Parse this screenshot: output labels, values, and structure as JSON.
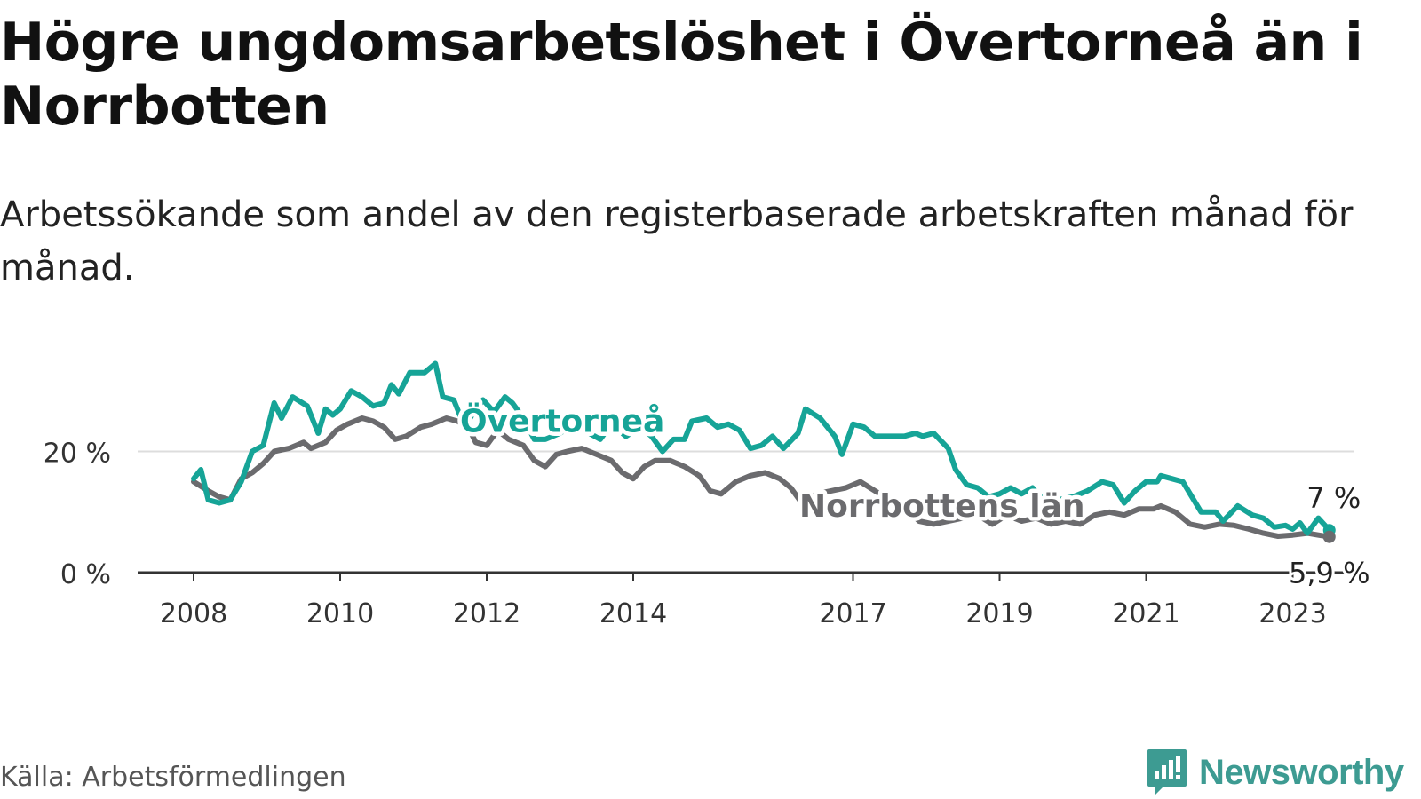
{
  "title": "Högre ungdomsarbetslöshet i Övertorneå än i Norrbotten",
  "subtitle": "Arbetssökande som andel av den registerbaserade arbetskraften månad för månad.",
  "source": "Källa: Arbetsförmedlingen",
  "logo": {
    "text": "Newsworthy",
    "icon": "newsworthy-logo-icon",
    "color": "#3d9b92"
  },
  "colors": {
    "overtornea": "#16a497",
    "norrbotten": "#6b6b6e",
    "grid": "#dddddd",
    "axis": "#333333"
  },
  "chart_data": {
    "type": "line",
    "title": "Högre ungdomsarbetslöshet i Övertorneå än i Norrbotten",
    "subtitle": "Arbetssökande som andel av den registerbaserade arbetskraften månad för månad.",
    "xlabel": "",
    "ylabel": "",
    "x_range": [
      2007.2,
      2024.0
    ],
    "ylim": [
      0,
      40
    ],
    "y_ticks": [
      0,
      20
    ],
    "y_tick_labels": [
      "0 %",
      "20 %"
    ],
    "x_ticks": [
      2008,
      2010,
      2012,
      2014,
      2017,
      2019,
      2021,
      2023
    ],
    "x_tick_labels": [
      "2008",
      "2010",
      "2012",
      "2014",
      "2017",
      "2019",
      "2021",
      "2023"
    ],
    "grid": true,
    "series": [
      {
        "name": "Övertorneå",
        "color": "#16a497",
        "last_label": "7 %",
        "points": [
          [
            2008.0,
            15.5
          ],
          [
            2008.1,
            17.0
          ],
          [
            2008.2,
            12.0
          ],
          [
            2008.35,
            11.5
          ],
          [
            2008.5,
            12.0
          ],
          [
            2008.65,
            15.0
          ],
          [
            2008.8,
            20.0
          ],
          [
            2008.95,
            21.0
          ],
          [
            2009.1,
            28.0
          ],
          [
            2009.2,
            25.5
          ],
          [
            2009.35,
            29.0
          ],
          [
            2009.55,
            27.5
          ],
          [
            2009.7,
            23.0
          ],
          [
            2009.8,
            27.0
          ],
          [
            2009.9,
            26.0
          ],
          [
            2010.0,
            27.0
          ],
          [
            2010.15,
            30.0
          ],
          [
            2010.3,
            29.0
          ],
          [
            2010.45,
            27.5
          ],
          [
            2010.6,
            28.0
          ],
          [
            2010.7,
            31.0
          ],
          [
            2010.8,
            29.5
          ],
          [
            2010.95,
            33.0
          ],
          [
            2011.15,
            33.0
          ],
          [
            2011.3,
            34.5
          ],
          [
            2011.4,
            29.0
          ],
          [
            2011.55,
            28.5
          ],
          [
            2011.7,
            24.0
          ],
          [
            2011.8,
            26.0
          ],
          [
            2011.95,
            28.5
          ],
          [
            2012.1,
            26.5
          ],
          [
            2012.25,
            29.0
          ],
          [
            2012.35,
            28.0
          ],
          [
            2012.5,
            25.5
          ],
          [
            2012.65,
            22.0
          ],
          [
            2012.8,
            22.0
          ],
          [
            2013.0,
            23.0
          ],
          [
            2013.2,
            24.5
          ],
          [
            2013.4,
            23.0
          ],
          [
            2013.55,
            22.0
          ],
          [
            2013.7,
            24.5
          ],
          [
            2013.9,
            22.5
          ],
          [
            2014.1,
            24.0
          ],
          [
            2014.25,
            22.5
          ],
          [
            2014.4,
            20.0
          ],
          [
            2014.55,
            22.0
          ],
          [
            2014.7,
            22.0
          ],
          [
            2014.8,
            25.0
          ],
          [
            2015.0,
            25.5
          ],
          [
            2015.15,
            24.0
          ],
          [
            2015.3,
            24.5
          ],
          [
            2015.45,
            23.5
          ],
          [
            2015.6,
            20.5
          ],
          [
            2015.75,
            21.0
          ],
          [
            2015.9,
            22.5
          ],
          [
            2016.05,
            20.5
          ],
          [
            2016.25,
            23.0
          ],
          [
            2016.35,
            27.0
          ],
          [
            2016.55,
            25.5
          ],
          [
            2016.75,
            22.5
          ],
          [
            2016.85,
            19.5
          ],
          [
            2017.0,
            24.5
          ],
          [
            2017.15,
            24.0
          ],
          [
            2017.3,
            22.5
          ],
          [
            2017.5,
            22.5
          ],
          [
            2017.7,
            22.5
          ],
          [
            2017.85,
            23.0
          ],
          [
            2017.95,
            22.5
          ],
          [
            2018.1,
            23.0
          ],
          [
            2018.3,
            20.5
          ],
          [
            2018.4,
            17.0
          ],
          [
            2018.55,
            14.5
          ],
          [
            2018.7,
            14.0
          ],
          [
            2018.85,
            12.5
          ],
          [
            2019.0,
            13.0
          ],
          [
            2019.15,
            14.0
          ],
          [
            2019.3,
            13.0
          ],
          [
            2019.45,
            14.0
          ],
          [
            2019.6,
            12.0
          ],
          [
            2019.8,
            12.0
          ],
          [
            2020.0,
            12.5
          ],
          [
            2020.2,
            13.5
          ],
          [
            2020.4,
            15.0
          ],
          [
            2020.55,
            14.5
          ],
          [
            2020.7,
            11.5
          ],
          [
            2020.85,
            13.5
          ],
          [
            2021.0,
            15.0
          ],
          [
            2021.15,
            15.0
          ],
          [
            2021.2,
            16.0
          ],
          [
            2021.35,
            15.5
          ],
          [
            2021.5,
            15.0
          ],
          [
            2021.6,
            13.0
          ],
          [
            2021.75,
            10.0
          ],
          [
            2021.95,
            10.0
          ],
          [
            2022.05,
            8.5
          ],
          [
            2022.25,
            11.0
          ],
          [
            2022.45,
            9.5
          ],
          [
            2022.6,
            9.0
          ],
          [
            2022.75,
            7.5
          ],
          [
            2022.9,
            7.8
          ],
          [
            2023.0,
            7.2
          ],
          [
            2023.1,
            8.2
          ],
          [
            2023.2,
            6.5
          ],
          [
            2023.35,
            9.0
          ],
          [
            2023.5,
            7.0
          ]
        ]
      },
      {
        "name": "Norrbottens län",
        "color": "#6b6b6e",
        "last_label": "5,9 %",
        "points": [
          [
            2008.0,
            15.0
          ],
          [
            2008.2,
            13.5
          ],
          [
            2008.35,
            12.5
          ],
          [
            2008.5,
            12.0
          ],
          [
            2008.65,
            15.5
          ],
          [
            2008.8,
            16.5
          ],
          [
            2008.95,
            18.0
          ],
          [
            2009.1,
            20.0
          ],
          [
            2009.3,
            20.5
          ],
          [
            2009.5,
            21.5
          ],
          [
            2009.6,
            20.5
          ],
          [
            2009.8,
            21.5
          ],
          [
            2009.95,
            23.5
          ],
          [
            2010.1,
            24.5
          ],
          [
            2010.3,
            25.5
          ],
          [
            2010.45,
            25.0
          ],
          [
            2010.6,
            24.0
          ],
          [
            2010.75,
            22.0
          ],
          [
            2010.9,
            22.5
          ],
          [
            2011.1,
            24.0
          ],
          [
            2011.25,
            24.5
          ],
          [
            2011.45,
            25.5
          ],
          [
            2011.6,
            25.0
          ],
          [
            2011.75,
            24.0
          ],
          [
            2011.85,
            21.5
          ],
          [
            2012.0,
            21.0
          ],
          [
            2012.15,
            23.5
          ],
          [
            2012.3,
            22.0
          ],
          [
            2012.5,
            21.0
          ],
          [
            2012.65,
            18.5
          ],
          [
            2012.8,
            17.5
          ],
          [
            2012.95,
            19.5
          ],
          [
            2013.1,
            20.0
          ],
          [
            2013.3,
            20.5
          ],
          [
            2013.5,
            19.5
          ],
          [
            2013.7,
            18.5
          ],
          [
            2013.85,
            16.5
          ],
          [
            2014.0,
            15.5
          ],
          [
            2014.15,
            17.5
          ],
          [
            2014.3,
            18.5
          ],
          [
            2014.5,
            18.5
          ],
          [
            2014.7,
            17.5
          ],
          [
            2014.9,
            16.0
          ],
          [
            2015.05,
            13.5
          ],
          [
            2015.2,
            13.0
          ],
          [
            2015.4,
            15.0
          ],
          [
            2015.6,
            16.0
          ],
          [
            2015.8,
            16.5
          ],
          [
            2016.0,
            15.5
          ],
          [
            2016.15,
            14.0
          ],
          [
            2016.3,
            11.5
          ],
          [
            2016.5,
            13.0
          ],
          [
            2016.7,
            13.5
          ],
          [
            2016.9,
            14.0
          ],
          [
            2017.1,
            15.0
          ],
          [
            2017.3,
            13.5
          ],
          [
            2017.5,
            12.0
          ],
          [
            2017.7,
            11.0
          ],
          [
            2017.9,
            8.5
          ],
          [
            2018.1,
            8.0
          ],
          [
            2018.3,
            8.5
          ],
          [
            2018.5,
            9.0
          ],
          [
            2018.7,
            9.5
          ],
          [
            2018.9,
            8.0
          ],
          [
            2019.1,
            9.5
          ],
          [
            2019.3,
            8.5
          ],
          [
            2019.5,
            9.0
          ],
          [
            2019.7,
            8.0
          ],
          [
            2019.9,
            8.5
          ],
          [
            2020.1,
            8.0
          ],
          [
            2020.3,
            9.5
          ],
          [
            2020.5,
            10.0
          ],
          [
            2020.7,
            9.5
          ],
          [
            2020.9,
            10.5
          ],
          [
            2021.1,
            10.5
          ],
          [
            2021.2,
            11.0
          ],
          [
            2021.4,
            10.0
          ],
          [
            2021.6,
            8.0
          ],
          [
            2021.8,
            7.5
          ],
          [
            2022.0,
            8.0
          ],
          [
            2022.2,
            7.8
          ],
          [
            2022.4,
            7.2
          ],
          [
            2022.6,
            6.5
          ],
          [
            2022.8,
            6.0
          ],
          [
            2023.0,
            6.2
          ],
          [
            2023.2,
            6.5
          ],
          [
            2023.35,
            6.2
          ],
          [
            2023.5,
            5.9
          ]
        ]
      }
    ],
    "annotations": [
      {
        "text": "Övertorneå",
        "series": "Övertorneå",
        "at": [
          2012.0,
          25.0
        ]
      },
      {
        "text": "Norrbottens län",
        "series": "Norrbottens län",
        "at": [
          2018.7,
          11.0
        ]
      }
    ]
  }
}
